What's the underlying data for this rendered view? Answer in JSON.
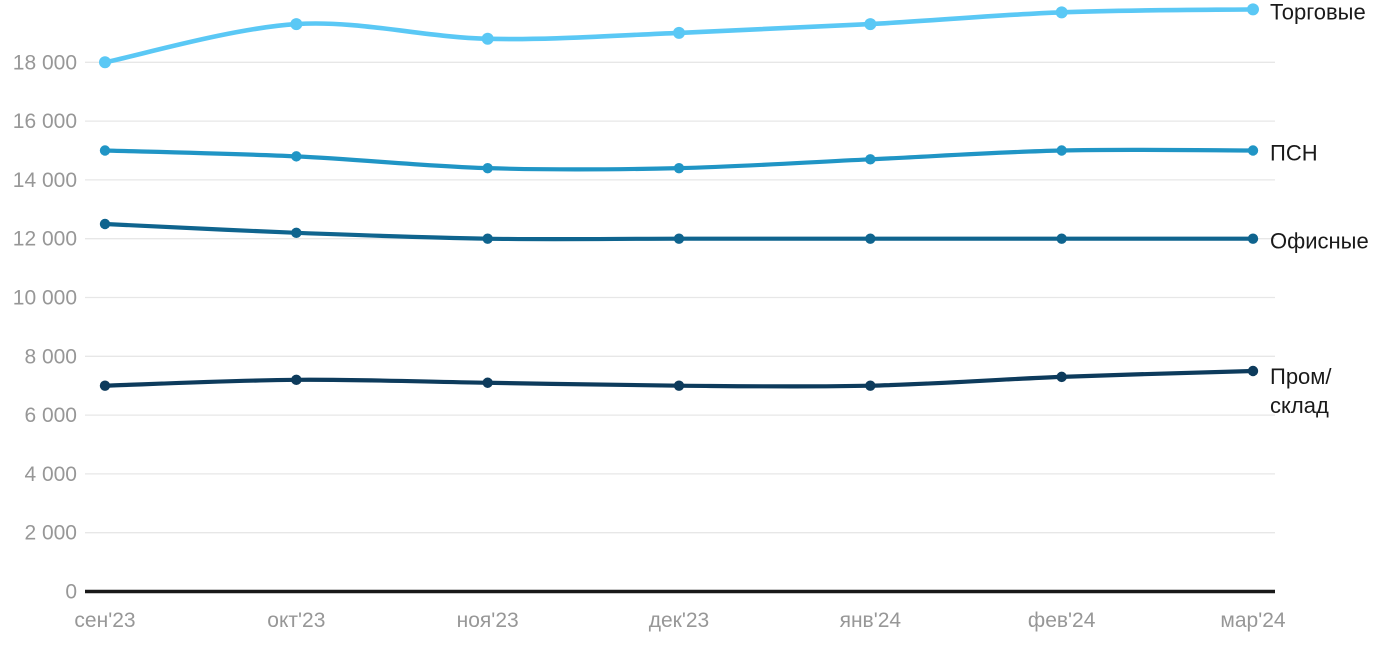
{
  "chart_data": {
    "type": "line",
    "title": "",
    "xlabel": "",
    "ylabel": "",
    "categories": [
      "сен'23",
      "окт'23",
      "ноя'23",
      "дек'23",
      "янв'24",
      "фев'24",
      "мар'24"
    ],
    "series": [
      {
        "id": "torgovye",
        "name": "Торговые",
        "label_lines": [
          "Торговые"
        ],
        "color": "#5ac8f5",
        "values": [
          18000,
          19300,
          18800,
          19000,
          19300,
          19700,
          19800
        ]
      },
      {
        "id": "psn",
        "name": "ПСН",
        "label_lines": [
          "ПСН"
        ],
        "color": "#2095c5",
        "values": [
          15000,
          14800,
          14400,
          14400,
          14700,
          15000,
          15000
        ]
      },
      {
        "id": "ofisnye",
        "name": "Офисные",
        "label_lines": [
          "Офисные"
        ],
        "color": "#0f648e",
        "values": [
          12500,
          12200,
          12000,
          12000,
          12000,
          12000,
          12000
        ]
      },
      {
        "id": "prom-sklad",
        "name": "Пром/склад",
        "label_lines": [
          "Пром/",
          "склад"
        ],
        "color": "#0d3b5c",
        "values": [
          7000,
          7200,
          7100,
          7000,
          7000,
          7300,
          7500
        ]
      }
    ],
    "y_axis": {
      "ticks": [
        0,
        2000,
        4000,
        6000,
        8000,
        10000,
        12000,
        14000,
        16000,
        18000
      ],
      "tick_labels": [
        "0",
        "2 000",
        "4 000",
        "6 000",
        "8 000",
        "10 000",
        "12 000",
        "14 000",
        "16 000",
        "18 000"
      ],
      "range": [
        0,
        20200
      ]
    },
    "grid": "horizontal",
    "legend_position": "right-end-of-lines"
  },
  "colors": {
    "background": "#ffffff",
    "grid": "#e7e7e7",
    "axis": "#191919",
    "tick_label": "#979797",
    "series_label": "#1a1a1a"
  }
}
